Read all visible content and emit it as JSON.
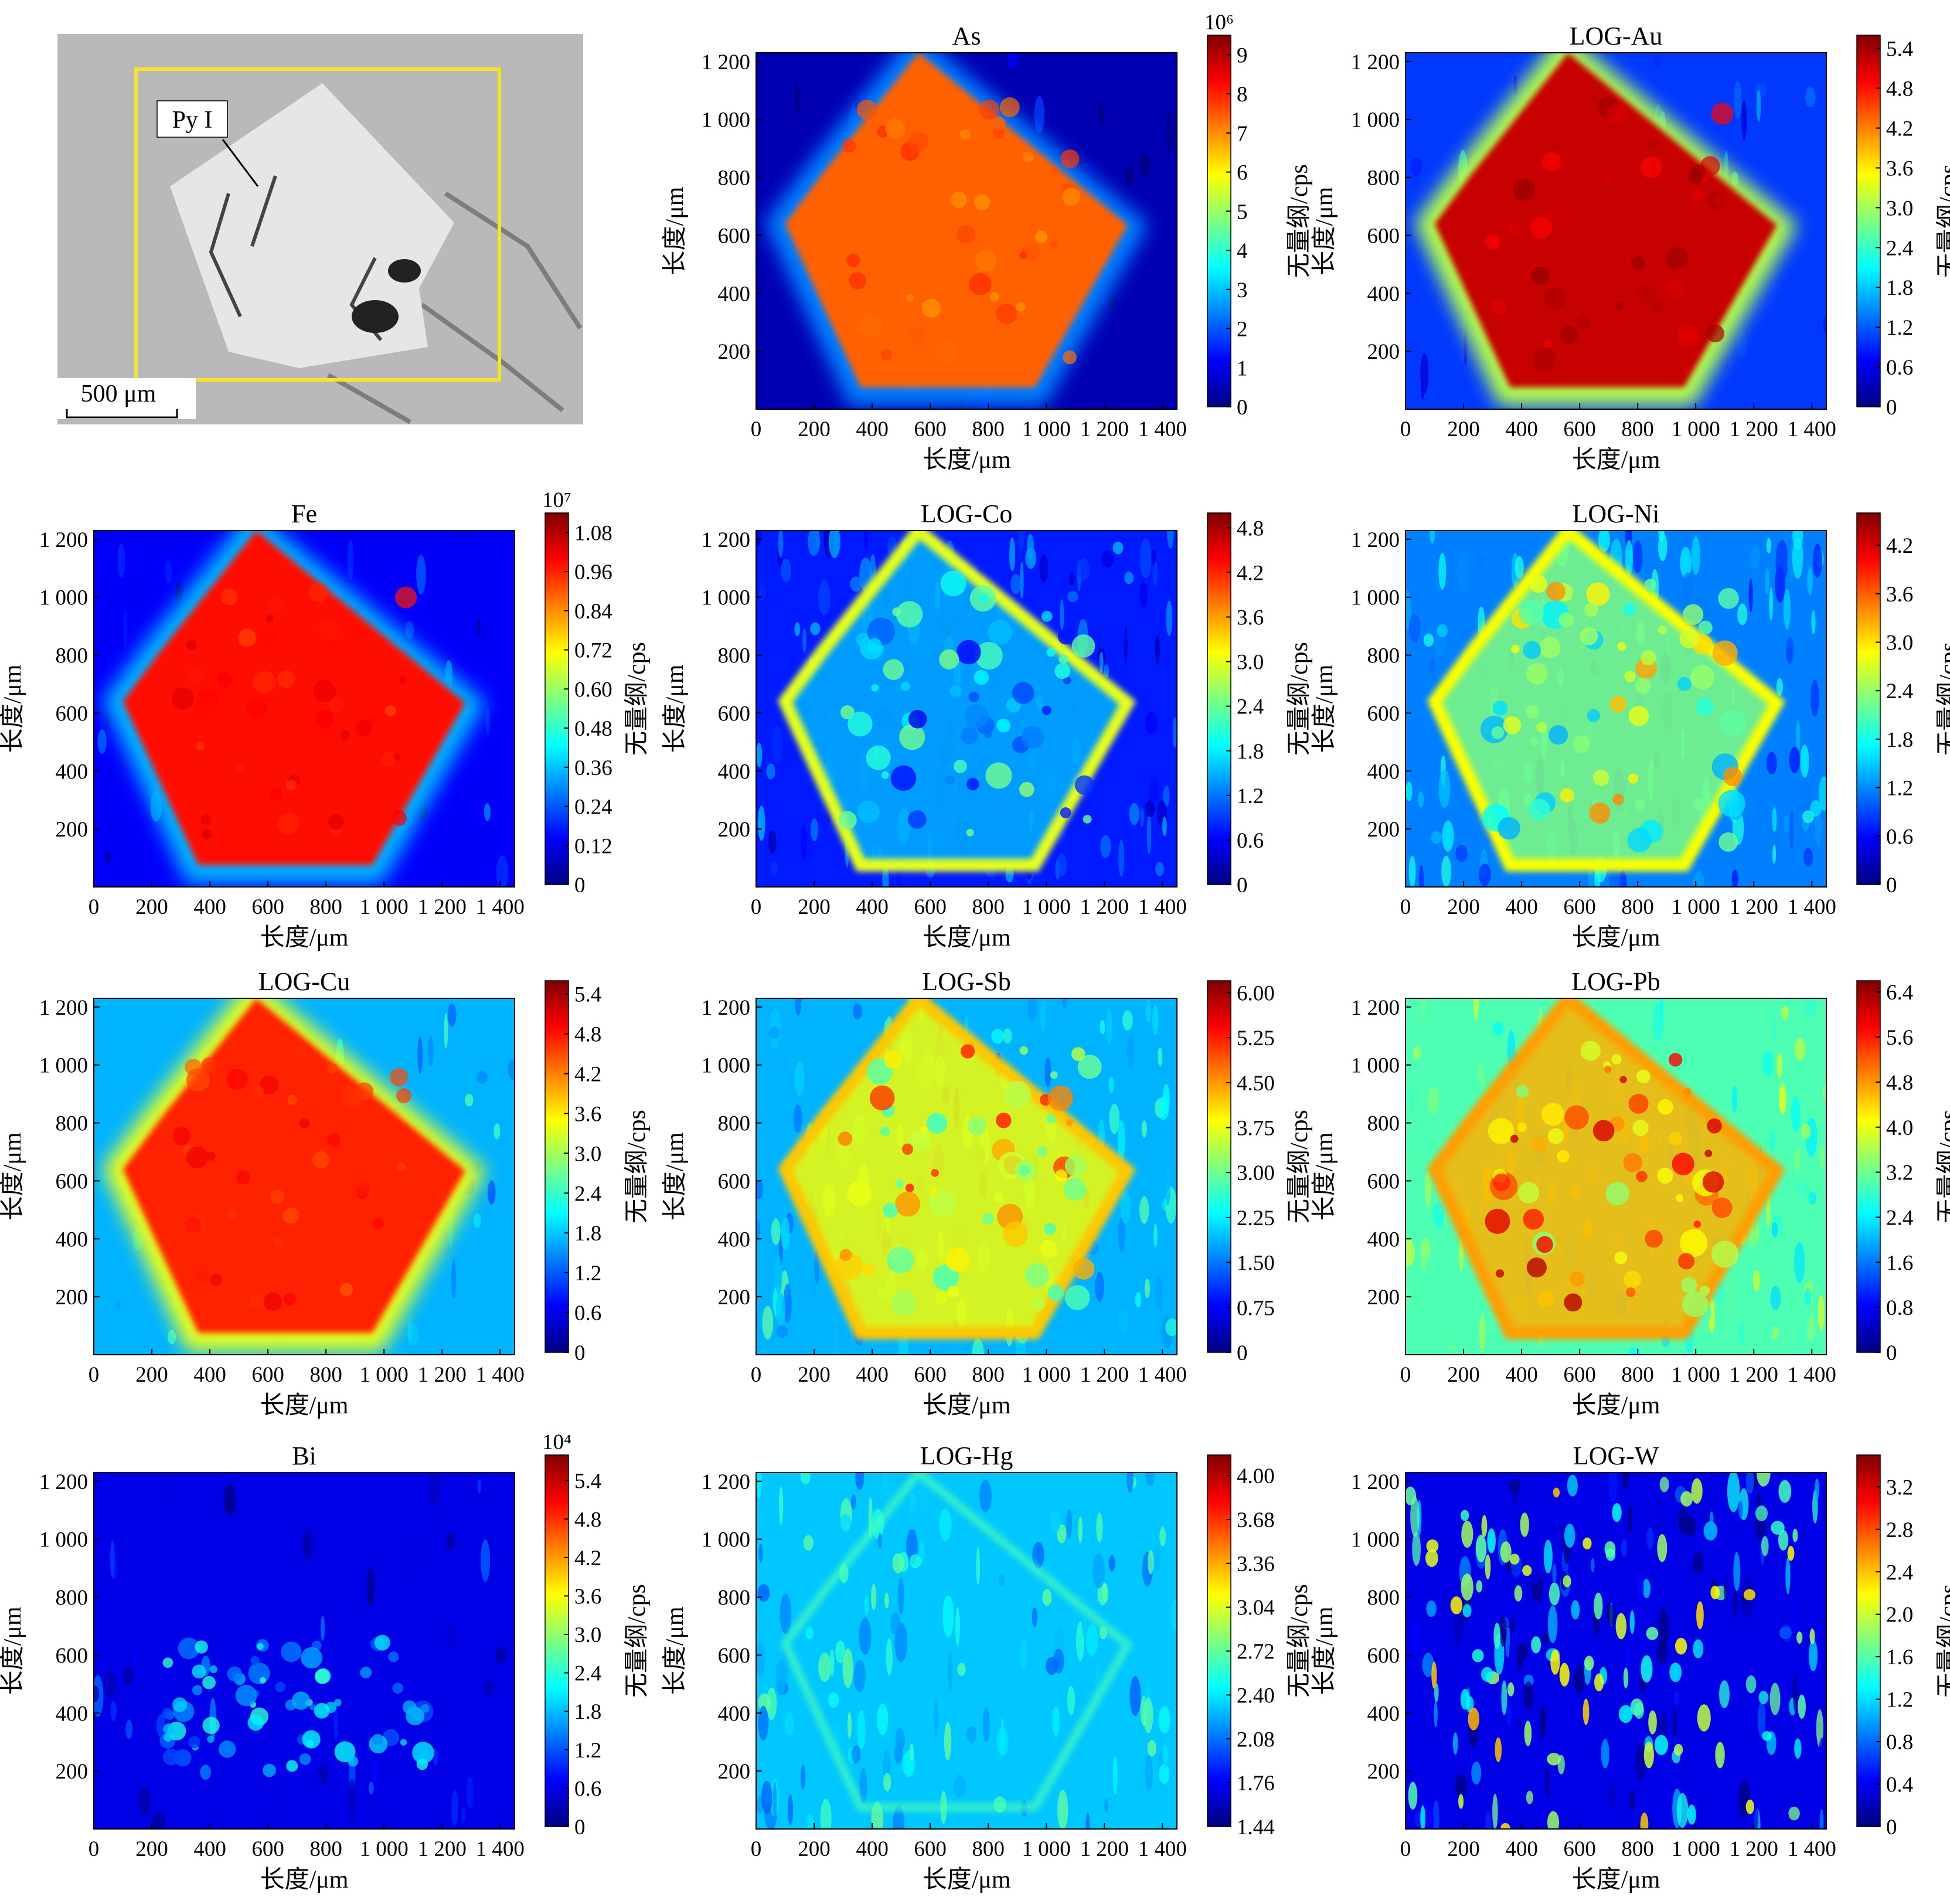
{
  "micrograph": {
    "label": "Py I",
    "scale_bar": "500 μm",
    "colors": {
      "background": "#b9b9b9",
      "grain": "#e6e6e6",
      "frame": "#f7e22c"
    }
  },
  "axes": {
    "x_label": "长度/μm",
    "y_label": "长度/μm",
    "x_ticks": [
      "0",
      "200",
      "400",
      "600",
      "800",
      "1 000",
      "1 200",
      "1 400"
    ],
    "y_ticks": [
      "200",
      "400",
      "600",
      "800",
      "1 000",
      "1 200"
    ],
    "x_range": [
      0,
      1450
    ],
    "y_range": [
      0,
      1230
    ]
  },
  "colorbar_label": "无量纲/cps",
  "colormap": "jet",
  "chart_data": [
    {
      "type": "heatmap",
      "title": "As",
      "panel": [
        0,
        1
      ],
      "multiplier": "10⁶",
      "cbar_ticks": [
        "0",
        "1",
        "2",
        "3",
        "4",
        "5",
        "6",
        "7",
        "8",
        "9"
      ],
      "cbar_range": [
        0,
        9.5
      ],
      "pattern": "inner-high",
      "inner_level": 0.78,
      "halo_level": 0.25,
      "bg_level": 0.05
    },
    {
      "type": "heatmap",
      "title": "LOG-Au",
      "panel": [
        0,
        2
      ],
      "multiplier": "",
      "cbar_ticks": [
        "0",
        "0.6",
        "1.2",
        "1.8",
        "2.4",
        "3.0",
        "3.6",
        "4.2",
        "4.8",
        "5.4"
      ],
      "cbar_range": [
        0,
        5.6
      ],
      "pattern": "inner-high",
      "inner_level": 0.93,
      "halo_level": 0.55,
      "bg_level": 0.18
    },
    {
      "type": "heatmap",
      "title": "Fe",
      "panel": [
        1,
        0
      ],
      "multiplier": "10⁷",
      "cbar_ticks": [
        "0",
        "0.12",
        "0.24",
        "0.36",
        "0.48",
        "0.60",
        "0.72",
        "0.84",
        "0.96",
        "1.08"
      ],
      "cbar_range": [
        0,
        1.14
      ],
      "pattern": "inner-high",
      "inner_level": 0.86,
      "halo_level": 0.3,
      "bg_level": 0.12
    },
    {
      "type": "heatmap",
      "title": "LOG-Co",
      "panel": [
        1,
        1
      ],
      "multiplier": "",
      "cbar_ticks": [
        "0",
        "0.6",
        "1.2",
        "1.8",
        "2.4",
        "3.0",
        "3.6",
        "4.2",
        "4.8"
      ],
      "cbar_range": [
        0,
        5.0
      ],
      "pattern": "rim",
      "inner_level": 0.3,
      "rim_level": 0.6,
      "bg_level": 0.15
    },
    {
      "type": "heatmap",
      "title": "LOG-Ni",
      "panel": [
        1,
        2
      ],
      "multiplier": "",
      "cbar_ticks": [
        "0",
        "0.6",
        "1.2",
        "1.8",
        "2.4",
        "3.0",
        "3.6",
        "4.2"
      ],
      "cbar_range": [
        0,
        4.6
      ],
      "pattern": "rim",
      "inner_level": 0.5,
      "rim_level": 0.62,
      "bg_level": 0.25
    },
    {
      "type": "heatmap",
      "title": "LOG-Cu",
      "panel": [
        2,
        0
      ],
      "multiplier": "",
      "cbar_ticks": [
        "0",
        "0.6",
        "1.2",
        "1.8",
        "2.4",
        "3.0",
        "3.6",
        "4.2",
        "4.8",
        "5.4"
      ],
      "cbar_range": [
        0,
        5.6
      ],
      "pattern": "inner-high",
      "inner_level": 0.84,
      "halo_level": 0.6,
      "bg_level": 0.3
    },
    {
      "type": "heatmap",
      "title": "LOG-Sb",
      "panel": [
        2,
        1
      ],
      "multiplier": "",
      "cbar_ticks": [
        "0",
        "0.75",
        "1.50",
        "2.25",
        "3.00",
        "3.75",
        "4.50",
        "5.25",
        "6.00"
      ],
      "cbar_range": [
        0,
        6.2
      ],
      "pattern": "rim",
      "inner_level": 0.62,
      "rim_level": 0.68,
      "bg_level": 0.3
    },
    {
      "type": "heatmap",
      "title": "LOG-Pb",
      "panel": [
        2,
        2
      ],
      "multiplier": "",
      "cbar_ticks": [
        "0",
        "0.8",
        "1.6",
        "2.4",
        "3.2",
        "4.0",
        "4.8",
        "5.6",
        "6.4"
      ],
      "cbar_range": [
        0,
        6.6
      ],
      "pattern": "rim",
      "inner_level": 0.7,
      "rim_level": 0.72,
      "bg_level": 0.45
    },
    {
      "type": "heatmap",
      "title": "Bi",
      "panel": [
        3,
        0
      ],
      "multiplier": "10⁴",
      "cbar_ticks": [
        "0",
        "0.6",
        "1.2",
        "1.8",
        "2.4",
        "3.0",
        "3.6",
        "4.2",
        "4.8",
        "5.4"
      ],
      "cbar_range": [
        0,
        5.8
      ],
      "pattern": "band",
      "inner_level": 0.18,
      "bg_level": 0.1
    },
    {
      "type": "heatmap",
      "title": "LOG-Hg",
      "panel": [
        3,
        1
      ],
      "multiplier": "",
      "cbar_ticks": [
        "1.44",
        "1.76",
        "2.08",
        "2.40",
        "2.72",
        "3.04",
        "3.36",
        "3.68",
        "4.00"
      ],
      "cbar_range": [
        1.44,
        4.15
      ],
      "pattern": "noise",
      "inner_level": 0.35,
      "bg_level": 0.32
    },
    {
      "type": "heatmap",
      "title": "LOG-W",
      "panel": [
        3,
        2
      ],
      "multiplier": "",
      "cbar_ticks": [
        "0",
        "0.4",
        "0.8",
        "1.2",
        "1.6",
        "2.0",
        "2.4",
        "2.8",
        "3.2"
      ],
      "cbar_range": [
        0,
        3.5
      ],
      "pattern": "speckle",
      "inner_level": 0.1,
      "bg_level": 0.1
    }
  ]
}
